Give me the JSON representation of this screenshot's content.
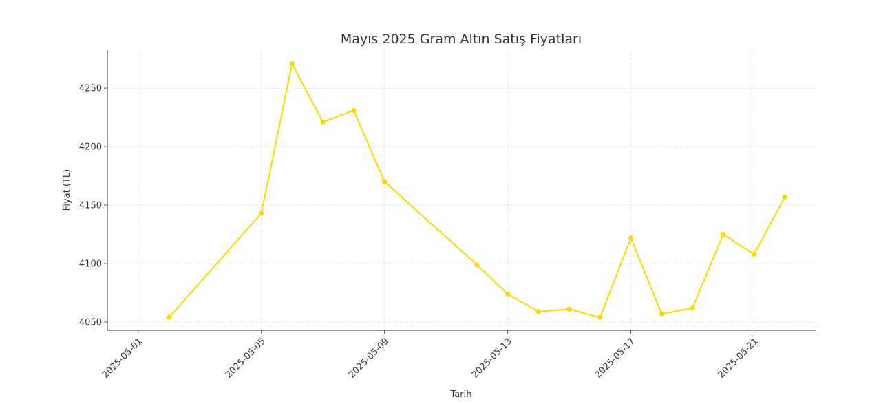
{
  "chart_data": {
    "type": "line",
    "title": "Mayıs 2025 Gram Altın Satış Fiyatları",
    "xlabel": "Tarih",
    "ylabel": "Fiyat (TL)",
    "x": [
      "2025-05-02",
      "2025-05-05",
      "2025-05-06",
      "2025-05-07",
      "2025-05-08",
      "2025-05-09",
      "2025-05-12",
      "2025-05-13",
      "2025-05-14",
      "2025-05-15",
      "2025-05-16",
      "2025-05-17",
      "2025-05-18",
      "2025-05-19",
      "2025-05-20",
      "2025-05-21",
      "2025-05-22"
    ],
    "series": [
      {
        "values": [
          4054,
          4143,
          4271,
          4221,
          4231,
          4170,
          4099,
          4074,
          4059,
          4061,
          4054,
          4122,
          4057,
          4062,
          4125,
          4108,
          4157
        ],
        "color": "#ffd700"
      }
    ],
    "xticks": [
      "2025-05-01",
      "2025-05-05",
      "2025-05-09",
      "2025-05-13",
      "2025-05-17",
      "2025-05-21"
    ],
    "yticks": [
      4050,
      4100,
      4150,
      4200,
      4250
    ],
    "xlim": [
      "2025-04-30",
      "2025-05-23"
    ],
    "ylim": [
      4043,
      4283
    ],
    "grid": true,
    "legend": "none"
  }
}
